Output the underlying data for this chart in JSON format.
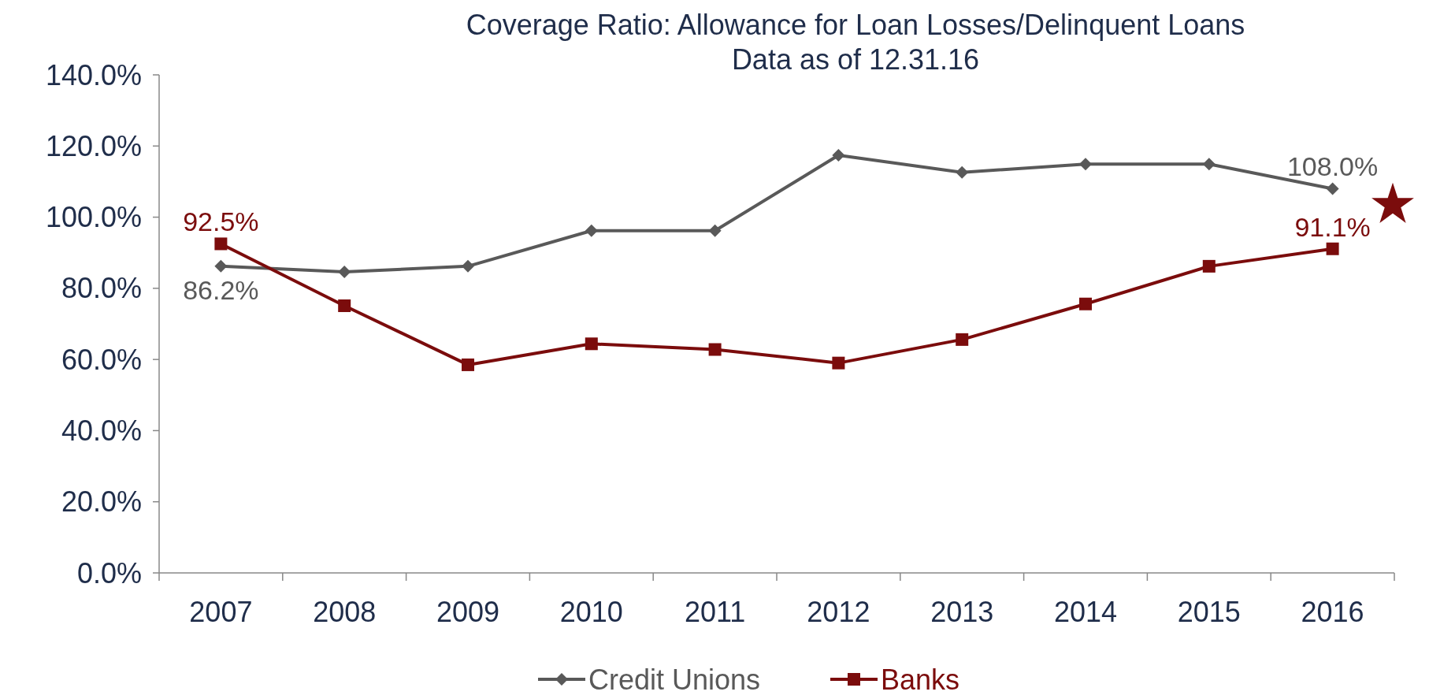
{
  "chart_data": {
    "type": "line",
    "title": "Coverage Ratio: Allowance for Loan Losses/Delinquent Loans",
    "subtitle": "Data as of 12.31.16",
    "categories": [
      "2007",
      "2008",
      "2009",
      "2010",
      "2011",
      "2012",
      "2013",
      "2014",
      "2015",
      "2016"
    ],
    "series": [
      {
        "name": "Credit Unions",
        "color": "#595959",
        "marker": "diamond",
        "values": [
          86.2,
          84.6,
          86.2,
          96.2,
          96.2,
          117.4,
          112.6,
          114.9,
          114.9,
          108.0
        ],
        "value_labels": [
          "86.2%",
          null,
          null,
          null,
          null,
          null,
          null,
          null,
          null,
          "108.0%"
        ]
      },
      {
        "name": "Banks",
        "color": "#7b0c0c",
        "marker": "square",
        "values": [
          92.5,
          75.1,
          58.5,
          64.4,
          62.8,
          59.0,
          65.6,
          75.6,
          86.2,
          91.1
        ],
        "value_labels": [
          "92.5%",
          null,
          null,
          null,
          null,
          null,
          null,
          null,
          null,
          "91.1%"
        ]
      }
    ],
    "ylim": [
      0,
      140
    ],
    "yticks": [
      {
        "value": 0,
        "label": "0.0%"
      },
      {
        "value": 20,
        "label": "20.0%"
      },
      {
        "value": 40,
        "label": "40.0%"
      },
      {
        "value": 60,
        "label": "60.0%"
      },
      {
        "value": 80,
        "label": "80.0%"
      },
      {
        "value": 100,
        "label": "100.0%"
      },
      {
        "value": 120,
        "label": "120.0%"
      },
      {
        "value": 140,
        "label": "140.0%"
      }
    ],
    "grid": false,
    "legend": "bottom",
    "line_style": "solid"
  }
}
